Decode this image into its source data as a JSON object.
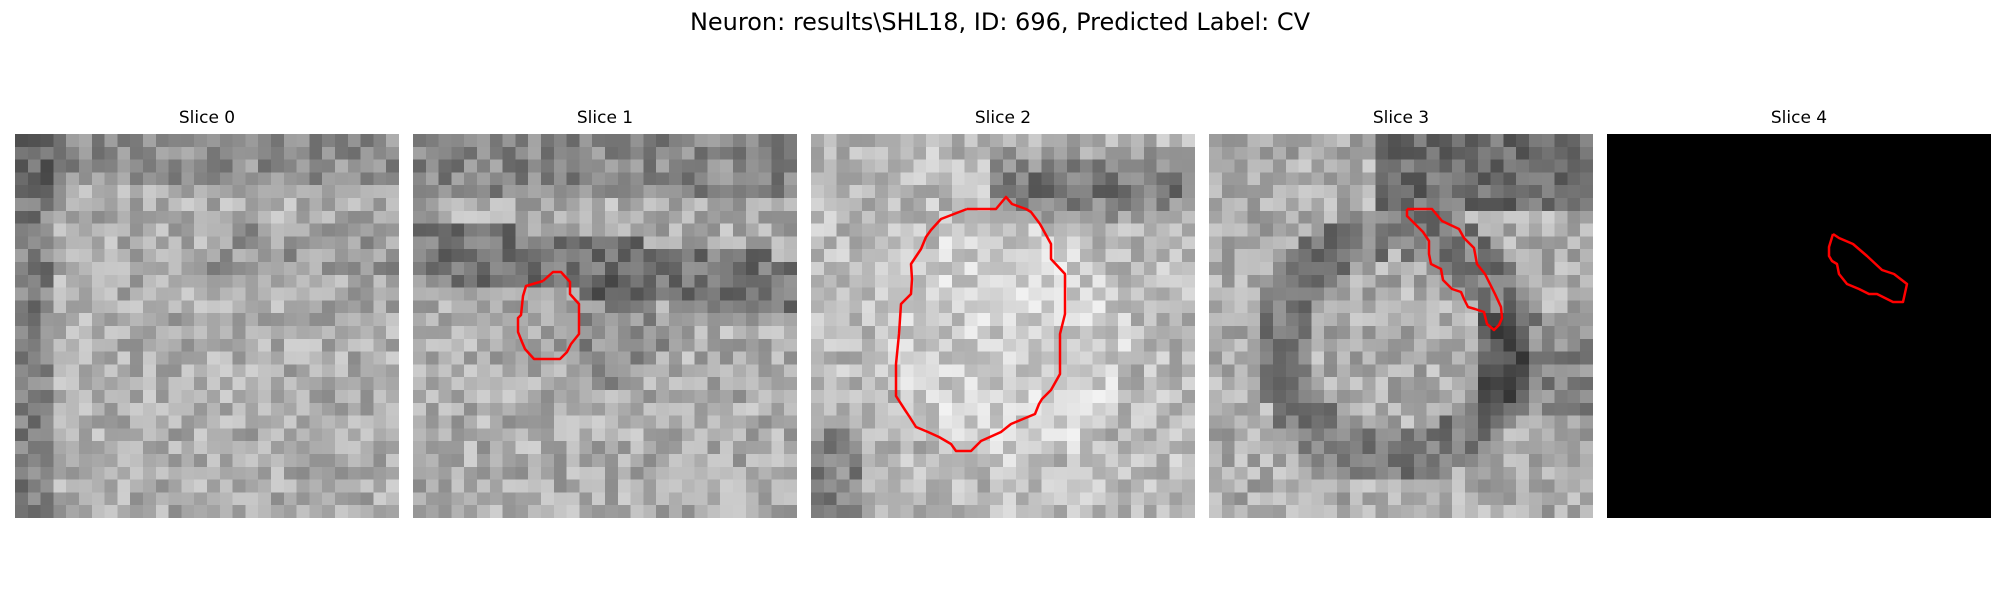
{
  "figure": {
    "title": "Neuron: results\\SHL18, ID: 696, Predicted Label: CV"
  },
  "colors": {
    "contour": "#ff0000",
    "background": "#ffffff"
  },
  "panels": [
    {
      "title": "Slice 0",
      "content": "grayscale-noise",
      "contour": false
    },
    {
      "title": "Slice 1",
      "content": "grayscale-noise",
      "contour": true
    },
    {
      "title": "Slice 2",
      "content": "grayscale-noise",
      "contour": true
    },
    {
      "title": "Slice 3",
      "content": "grayscale-noise",
      "contour": true
    },
    {
      "title": "Slice 4",
      "content": "black",
      "contour": true
    }
  ]
}
